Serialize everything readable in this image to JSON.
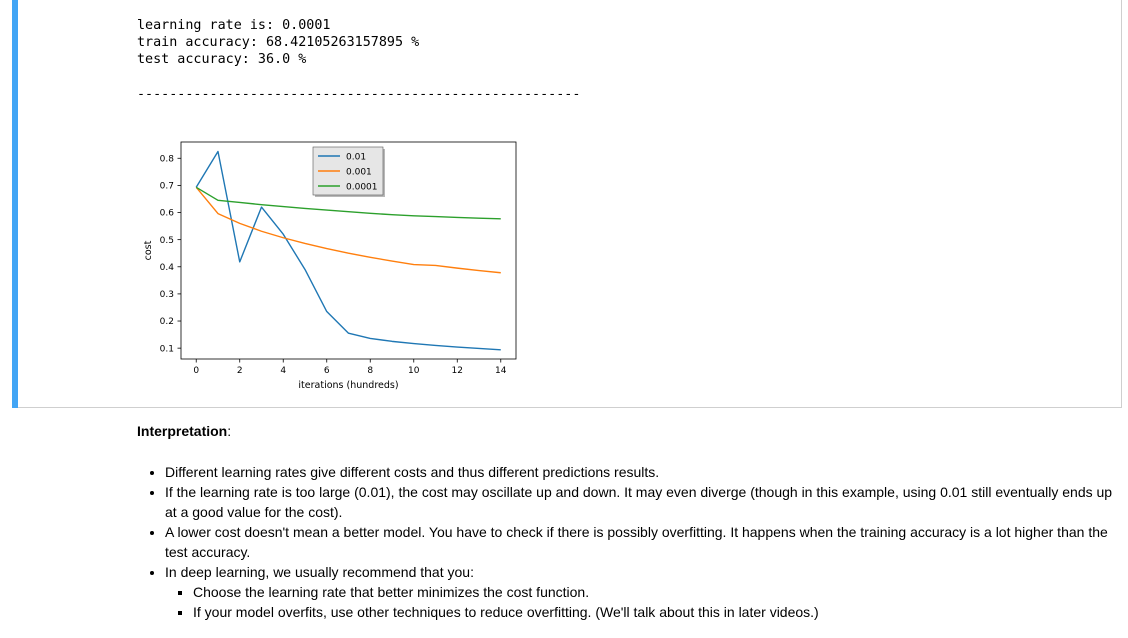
{
  "output": {
    "lines": [
      "learning rate is: 0.0001",
      "train accuracy: 68.42105263157895 %",
      "test accuracy: 36.0 %"
    ],
    "separator": "-------------------------------------------------------"
  },
  "chart_data": {
    "type": "line",
    "xlabel": "iterations (hundreds)",
    "ylabel": "cost",
    "xlim": [
      -0.7,
      14.7
    ],
    "ylim": [
      0.06,
      0.86
    ],
    "xticks": [
      "0",
      "2",
      "4",
      "6",
      "8",
      "10",
      "12",
      "14"
    ],
    "yticks": [
      "0.1",
      "0.2",
      "0.3",
      "0.4",
      "0.5",
      "0.6",
      "0.7",
      "0.8"
    ],
    "legend_position": "upper-center",
    "x": [
      0,
      1,
      2,
      3,
      4,
      5,
      6,
      7,
      8,
      9,
      10,
      11,
      12,
      13,
      14
    ],
    "series": [
      {
        "name": "0.01",
        "color": "#1f77b4",
        "values": [
          0.693,
          0.825,
          0.418,
          0.62,
          0.52,
          0.39,
          0.235,
          0.155,
          0.136,
          0.125,
          0.117,
          0.11,
          0.104,
          0.099,
          0.094
        ]
      },
      {
        "name": "0.001",
        "color": "#ff7f0e",
        "values": [
          0.693,
          0.596,
          0.56,
          0.531,
          0.507,
          0.486,
          0.467,
          0.45,
          0.435,
          0.421,
          0.408,
          0.405,
          0.395,
          0.386,
          0.378
        ]
      },
      {
        "name": "0.0001",
        "color": "#2ca02c",
        "values": [
          0.693,
          0.645,
          0.637,
          0.629,
          0.622,
          0.615,
          0.609,
          0.603,
          0.597,
          0.592,
          0.588,
          0.585,
          0.582,
          0.579,
          0.577
        ]
      }
    ]
  },
  "markdown": {
    "heading": "Interpretation",
    "heading_suffix": ":",
    "bullets": [
      "Different learning rates give different costs and thus different predictions results.",
      "If the learning rate is too large (0.01), the cost may oscillate up and down. It may even diverge (though in this example, using 0.01 still eventually ends up at a good value for the cost).",
      "A lower cost doesn't mean a better model. You have to check if there is possibly overfitting. It happens when the training accuracy is a lot higher than the test accuracy.",
      "In deep learning, we usually recommend that you:"
    ],
    "sub_bullets": [
      "Choose the learning rate that better minimizes the cost function.",
      "If your model overfits, use other techniques to reduce overfitting. (We'll talk about this in later videos.)"
    ]
  }
}
